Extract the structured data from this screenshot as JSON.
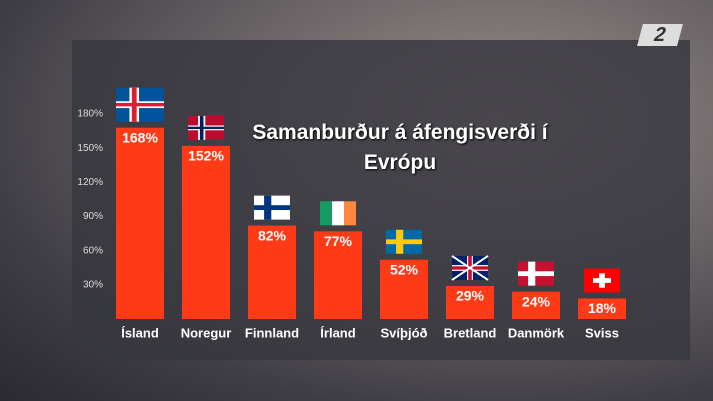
{
  "channel_logo": "2",
  "chart_data": {
    "type": "bar",
    "title": "Samanburður á áfengisverði í Evrópu",
    "categories": [
      "Ísland",
      "Noregur",
      "Finnland",
      "Írland",
      "Svíþjóð",
      "Bretland",
      "Danmörk",
      "Sviss"
    ],
    "values": [
      168,
      152,
      82,
      77,
      52,
      29,
      24,
      18
    ],
    "value_labels": [
      "168%",
      "152%",
      "82%",
      "77%",
      "52%",
      "29%",
      "24%",
      "18%"
    ],
    "color": "#ff3a17",
    "ylim": [
      0,
      180
    ],
    "yticks": [
      {
        "value": 30,
        "label": "30%"
      },
      {
        "value": 60,
        "label": "60%"
      },
      {
        "value": 90,
        "label": "90%"
      },
      {
        "value": 120,
        "label": "120%"
      },
      {
        "value": 150,
        "label": "150%"
      },
      {
        "value": 180,
        "label": "180%"
      }
    ]
  }
}
